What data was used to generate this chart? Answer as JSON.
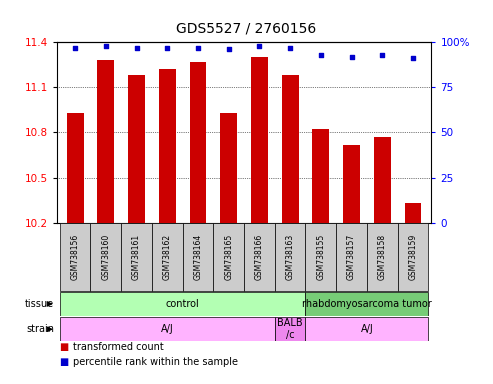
{
  "title": "GDS5527 / 2760156",
  "samples": [
    "GSM738156",
    "GSM738160",
    "GSM738161",
    "GSM738162",
    "GSM738164",
    "GSM738165",
    "GSM738166",
    "GSM738163",
    "GSM738155",
    "GSM738157",
    "GSM738158",
    "GSM738159"
  ],
  "bar_values": [
    10.93,
    11.28,
    11.18,
    11.22,
    11.27,
    10.93,
    11.3,
    11.18,
    10.82,
    10.72,
    10.77,
    10.33
  ],
  "percentile_values": [
    97,
    98,
    97,
    97,
    97,
    96,
    98,
    97,
    93,
    92,
    93,
    91
  ],
  "ymin": 10.2,
  "ymax": 11.4,
  "yticks_left": [
    10.2,
    10.5,
    10.8,
    11.1,
    11.4
  ],
  "yticks_right_vals": [
    0,
    25,
    50,
    75,
    100
  ],
  "yticks_right_labels": [
    "0",
    "25",
    "50",
    "75",
    "100%"
  ],
  "bar_color": "#cc0000",
  "dot_color": "#0000cc",
  "bar_width": 0.55,
  "tissue_groups": [
    {
      "text": "control",
      "start": 0,
      "end": 8,
      "color": "#b3ffb3"
    },
    {
      "text": "rhabdomyosarcoma tumor",
      "start": 8,
      "end": 12,
      "color": "#77cc77"
    }
  ],
  "strain_groups": [
    {
      "text": "A/J",
      "start": 0,
      "end": 7,
      "color": "#ffb3ff"
    },
    {
      "text": "BALB\n/c",
      "start": 7,
      "end": 8,
      "color": "#ee88ee"
    },
    {
      "text": "A/J",
      "start": 8,
      "end": 12,
      "color": "#ffb3ff"
    }
  ],
  "label_tissue": "tissue",
  "label_strain": "strain",
  "legend_bar_text": "transformed count",
  "legend_dot_text": "percentile rank within the sample",
  "bg_color": "#ffffff",
  "sample_box_color": "#cccccc",
  "title_fontsize": 10,
  "tick_fontsize": 7.5,
  "sample_fontsize": 5.5,
  "annotation_fontsize": 7,
  "legend_fontsize": 7
}
